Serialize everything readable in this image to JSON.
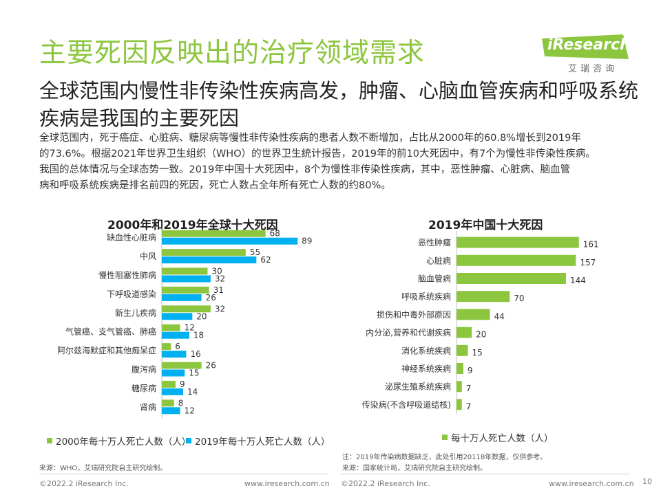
{
  "slide": {
    "title": "主要死因反映出的治疗领域需求",
    "subtitle": "全球范围内慢性非传染性疾病高发，肿瘤、心脑血管疾病和呼吸系统疾病是我国的主要死因",
    "body_lines": [
      "全球范围内，死于癌症、心脏病、糖尿病等慢性非传染性疾病的患者人数不断增加，占比从2000年的60.8%增长到2019年",
      "的73.6%。根据2021年世界卫生组织（WHO）的世界卫生统计报告，2019年的前10大死因中，有7个为慢性非传染性疾病。",
      "我国的总体情况与全球态势一致。2019年中国十大死因中，8个为慢性非传染性疾病，其中，恶性肿瘤、心脏病、脑血管",
      "病和呼吸系统疾病是排名前四的死因，死亡人数占全年所有死亡人数的约80%。"
    ],
    "page_number": "10"
  },
  "logo": {
    "name": "iResearch",
    "subtitle": "艾瑞咨询"
  },
  "colors": {
    "green": "#8cc63f",
    "blue": "#00b0f0",
    "title_green": "#8cc63f"
  },
  "chart_data": [
    {
      "type": "bar",
      "orientation": "horizontal",
      "title": "2000年和2019年全球十大死因",
      "categories": [
        "缺血性心脏病",
        "中风",
        "慢性阻塞性肺病",
        "下呼吸道感染",
        "新生儿疾病",
        "气管癌、支气管癌、肺癌",
        "阿尔兹海默症和其他痴呆症",
        "腹泻病",
        "糖尿病",
        "肾病"
      ],
      "series": [
        {
          "name": "2000年每十万人死亡人数（人）",
          "color": "#8cc63f",
          "values": [
            68,
            55,
            30,
            31,
            32,
            12,
            6,
            26,
            9,
            8
          ]
        },
        {
          "name": "2019年每十万人死亡人数（人）",
          "color": "#00b0f0",
          "values": [
            89,
            62,
            32,
            26,
            20,
            18,
            16,
            15,
            14,
            12
          ]
        }
      ],
      "xlim": [
        0,
        130
      ],
      "note": "",
      "source": "来源：WHO，艾瑞研究院自主研究绘制。",
      "footer_left": "©2022.2 iResearch Inc.",
      "footer_right": "www.iresearch.com.cn"
    },
    {
      "type": "bar",
      "orientation": "horizontal",
      "title": "2019年中国十大死因",
      "categories": [
        "恶性肿瘤",
        "心脏病",
        "脑血管病",
        "呼吸系统疾病",
        "损伤和中毒外部原因",
        "内分泌,营养和代谢疾病",
        "消化系统疾病",
        "神经系统疾病",
        "泌尿生殖系统疾病",
        "传染病(不含呼吸道结核)"
      ],
      "series": [
        {
          "name": "每十万人死亡人数（人）",
          "color": "#8cc63f",
          "values": [
            161,
            157,
            144,
            70,
            44,
            20,
            15,
            9,
            7,
            7
          ]
        }
      ],
      "xlim": [
        0,
        225
      ],
      "note": "注：2019年传染病数据缺乏，此处引用20118年数据，仅供参考。",
      "source": "来源：国家统计局，艾瑞研究院自主研究绘制。",
      "footer_left": "©2022.2 iResearch Inc.",
      "footer_right": "www.iresearch.com.cn"
    }
  ]
}
